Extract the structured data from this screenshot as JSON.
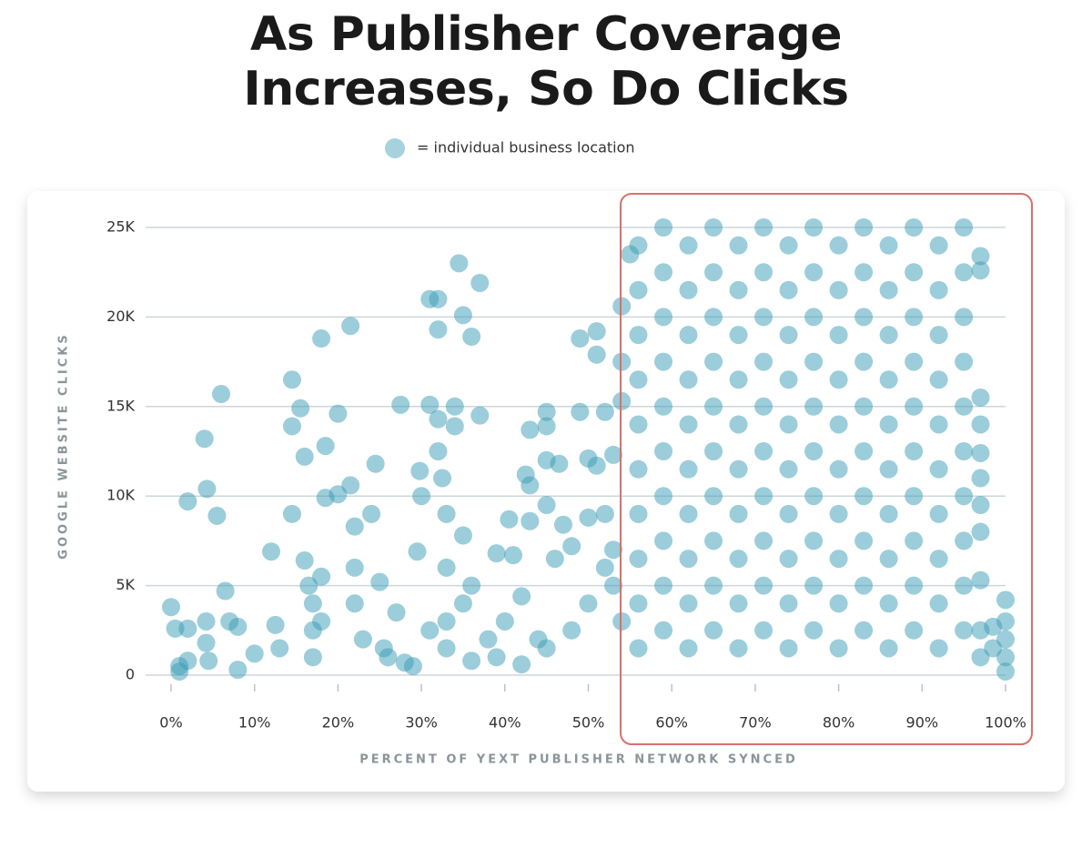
{
  "chart_data": {
    "type": "scatter",
    "title": "As Publisher Coverage Increases, So Do Clicks",
    "x_label": "PERCENT OF YEXT PUBLISHER NETWORK SYNCED",
    "y_label": "GOOGLE WEBSITE CLICKS",
    "xlim": [
      0,
      100
    ],
    "ylim": [
      0,
      25000
    ],
    "xticks": [
      {
        "value": 0,
        "label": "0%"
      },
      {
        "value": 10,
        "label": "10%"
      },
      {
        "value": 20,
        "label": "20%"
      },
      {
        "value": 30,
        "label": "30%"
      },
      {
        "value": 40,
        "label": "40%"
      },
      {
        "value": 50,
        "label": "50%"
      },
      {
        "value": 60,
        "label": "60%"
      },
      {
        "value": 70,
        "label": "70%"
      },
      {
        "value": 80,
        "label": "80%"
      },
      {
        "value": 90,
        "label": "90%"
      },
      {
        "value": 100,
        "label": "100%"
      }
    ],
    "yticks": [
      0,
      {
        "value": 5000,
        "label": "5K"
      },
      {
        "value": 10000,
        "label": "10K"
      },
      {
        "value": 15000,
        "label": "15K"
      },
      {
        "value": 20000,
        "label": "20K"
      },
      {
        "value": 25000,
        "label": "25K"
      }
    ],
    "grid": true,
    "series": [
      {
        "name": "= individual business location",
        "color": "#3a9bb5",
        "x": [
          0,
          0.5,
          1,
          1,
          2,
          2,
          2,
          4,
          4.3,
          4.2,
          4.2,
          4.5,
          5.5,
          6,
          6.5,
          7,
          8,
          8,
          10,
          12,
          12.5,
          13,
          14.5,
          14.5,
          14.5,
          15.5,
          16,
          16,
          16.5,
          17,
          17,
          17,
          18,
          18.5,
          18.5,
          18,
          18,
          20,
          20,
          21.5,
          21.5,
          22,
          22,
          22,
          23,
          24,
          24.5,
          25,
          25.5,
          27,
          27.5,
          28,
          29.5,
          29.8,
          30,
          31,
          31,
          32,
          32,
          32,
          32,
          32.5,
          33,
          33,
          33,
          34,
          34,
          34.5,
          35,
          35,
          35,
          36,
          36,
          37,
          37,
          38,
          39,
          40,
          40.5,
          41,
          42,
          42.5,
          43,
          43,
          43,
          44,
          45,
          45,
          45,
          45,
          46,
          46.5,
          47,
          48,
          49,
          49,
          50,
          50,
          51,
          51,
          51,
          52,
          52,
          53,
          53,
          54,
          54,
          54,
          54,
          55,
          26,
          29,
          31,
          33,
          36,
          39,
          42,
          45,
          48,
          50,
          52,
          53,
          56,
          56,
          56,
          56,
          56,
          56,
          56,
          56,
          56,
          56,
          59,
          59,
          59,
          59,
          59,
          59,
          59,
          59,
          59,
          59,
          62,
          62,
          62,
          62,
          62,
          62,
          62,
          62,
          62,
          62,
          65,
          65,
          65,
          65,
          65,
          65,
          65,
          65,
          65,
          65,
          68,
          68,
          68,
          68,
          68,
          68,
          68,
          68,
          68,
          68,
          71,
          71,
          71,
          71,
          71,
          71,
          71,
          71,
          71,
          71,
          74,
          74,
          74,
          74,
          74,
          74,
          74,
          74,
          74,
          74,
          77,
          77,
          77,
          77,
          77,
          77,
          77,
          77,
          77,
          77,
          80,
          80,
          80,
          80,
          80,
          80,
          80,
          80,
          80,
          80,
          83,
          83,
          83,
          83,
          83,
          83,
          83,
          83,
          83,
          83,
          86,
          86,
          86,
          86,
          86,
          86,
          86,
          86,
          86,
          86,
          89,
          89,
          89,
          89,
          89,
          89,
          89,
          89,
          89,
          89,
          92,
          92,
          92,
          92,
          92,
          92,
          92,
          92,
          92,
          92,
          95,
          95,
          95,
          95,
          95,
          95,
          95,
          95,
          95,
          95,
          97,
          97,
          97,
          97,
          97,
          97,
          97,
          97,
          97,
          97,
          97,
          98.5,
          98.5,
          100,
          100,
          100,
          100,
          100
        ],
        "values": [
          3800,
          2600,
          500,
          200,
          9700,
          2600,
          800,
          13200,
          10400,
          3000,
          1800,
          800,
          8900,
          15700,
          4700,
          3000,
          2700,
          300,
          1200,
          6900,
          2800,
          1500,
          16500,
          13900,
          9000,
          14900,
          12200,
          6400,
          5000,
          4000,
          2500,
          1000,
          18800,
          12800,
          9900,
          5500,
          3000,
          10100,
          14600,
          19500,
          10600,
          8300,
          6000,
          4000,
          2000,
          9000,
          11800,
          5200,
          1500,
          3500,
          15100,
          700,
          6900,
          11400,
          10000,
          21000,
          15100,
          21000,
          19300,
          14300,
          12500,
          11000,
          9000,
          6000,
          3000,
          15000,
          13900,
          23000,
          20100,
          7800,
          4000,
          18900,
          5000,
          21900,
          14500,
          2000,
          6800,
          3000,
          8700,
          6700,
          4400,
          11200,
          10600,
          13700,
          8600,
          2000,
          14700,
          13900,
          12000,
          9500,
          6500,
          11800,
          8400,
          7200,
          18800,
          14700,
          12100,
          8800,
          19200,
          17900,
          11700,
          14700,
          9000,
          12300,
          5000,
          20600,
          17500,
          15300,
          3000,
          23500,
          1000,
          500,
          2500,
          1500,
          800,
          1000,
          600,
          1500,
          2500,
          4000,
          6000,
          7000,
          24000,
          21500,
          19000,
          16500,
          14000,
          11500,
          9000,
          6500,
          4000,
          1500,
          25000,
          22500,
          20000,
          17500,
          15000,
          12500,
          10000,
          7500,
          5000,
          2500,
          24000,
          21500,
          19000,
          16500,
          14000,
          11500,
          9000,
          6500,
          4000,
          1500,
          25000,
          22500,
          20000,
          17500,
          15000,
          12500,
          10000,
          7500,
          5000,
          2500,
          24000,
          21500,
          19000,
          16500,
          14000,
          11500,
          9000,
          6500,
          4000,
          1500,
          25000,
          22500,
          20000,
          17500,
          15000,
          12500,
          10000,
          7500,
          5000,
          2500,
          24000,
          21500,
          19000,
          16500,
          14000,
          11500,
          9000,
          6500,
          4000,
          1500,
          25000,
          22500,
          20000,
          17500,
          15000,
          12500,
          10000,
          7500,
          5000,
          2500,
          24000,
          21500,
          19000,
          16500,
          14000,
          11500,
          9000,
          6500,
          4000,
          1500,
          25000,
          22500,
          20000,
          17500,
          15000,
          12500,
          10000,
          7500,
          5000,
          2500,
          24000,
          21500,
          19000,
          16500,
          14000,
          11500,
          9000,
          6500,
          4000,
          1500,
          25000,
          22500,
          20000,
          17500,
          15000,
          12500,
          10000,
          7500,
          5000,
          2500,
          24000,
          21500,
          19000,
          16500,
          14000,
          11500,
          9000,
          6500,
          4000,
          1500,
          25000,
          22500,
          20000,
          17500,
          15000,
          12500,
          10000,
          7500,
          5000,
          2500,
          23400,
          22600,
          15500,
          14000,
          12400,
          11000,
          9500,
          8000,
          5300,
          2500,
          1000,
          2700,
          1500,
          4200,
          3000,
          2000,
          1000,
          200
        ]
      }
    ]
  }
}
